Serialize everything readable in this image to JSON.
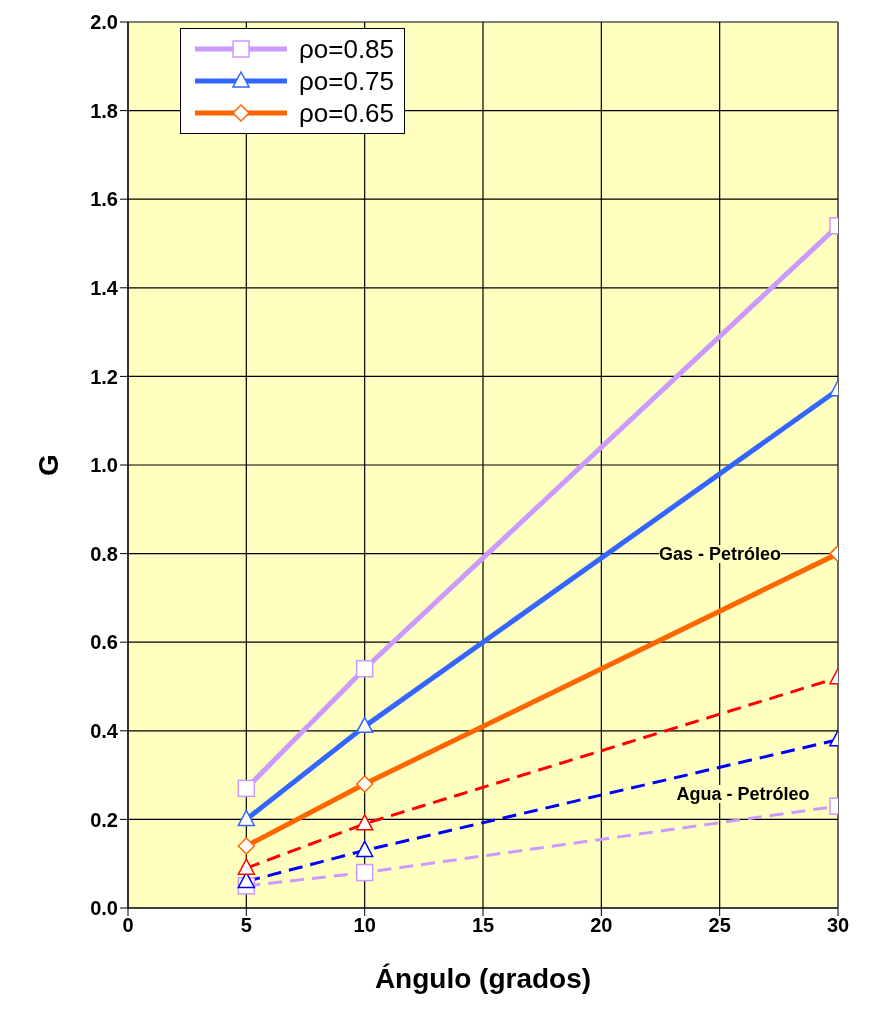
{
  "chart_data": {
    "type": "line",
    "xlabel": "Ángulo (grados)",
    "ylabel": "G",
    "xlim": [
      0,
      30
    ],
    "xticks": [
      0,
      5,
      10,
      15,
      20,
      25,
      30
    ],
    "ylim": [
      0,
      2
    ],
    "yticks": [
      {
        "value": 0,
        "label": "0.0"
      },
      0.2,
      0.4,
      0.6,
      0.8,
      {
        "value": 1,
        "label": "1.0"
      },
      1.2,
      1.4,
      1.6,
      1.8,
      {
        "value": 2,
        "label": "2.0"
      }
    ],
    "grid": true,
    "legend": "top left",
    "series": [
      {
        "name": "ρo=0.85",
        "color": "#cc99ff",
        "marker": "square",
        "line_style": "solid",
        "x": [
          5,
          10,
          30
        ],
        "values": [
          0.27,
          0.54,
          1.54
        ]
      },
      {
        "name": "ρo=0.75",
        "color": "#3366ff",
        "marker": "triangle",
        "line_style": "solid",
        "x": [
          5,
          10,
          30
        ],
        "values": [
          0.2,
          0.41,
          1.17
        ]
      },
      {
        "name": "ρo=0.65",
        "color": "#ff6600",
        "marker": "diamond",
        "line_style": "solid",
        "x": [
          5,
          10,
          30
        ],
        "values": [
          0.14,
          0.28,
          0.8
        ]
      },
      {
        "color": "#ff0000",
        "marker": "triangle",
        "line_style": "dashed",
        "x": [
          5,
          10,
          30
        ],
        "values": [
          0.09,
          0.19,
          0.52
        ]
      },
      {
        "color": "#0000ff",
        "marker": "triangle",
        "line_style": "dashed",
        "x": [
          5,
          10,
          30
        ],
        "values": [
          0.06,
          0.13,
          0.38
        ]
      },
      {
        "color": "#cc99ff",
        "marker": "square",
        "line_style": "dashed",
        "x": [
          5,
          10,
          30
        ],
        "values": [
          0.05,
          0.08,
          0.23
        ]
      }
    ],
    "annotations": [
      "Gas - Petróleo",
      "Agua - Petróleo"
    ]
  }
}
